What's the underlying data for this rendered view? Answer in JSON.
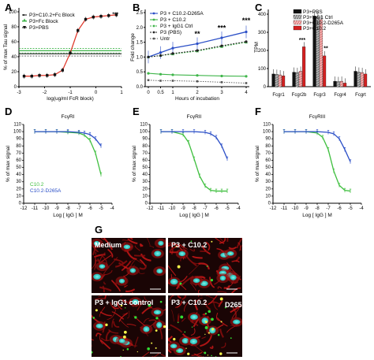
{
  "panel_letters": [
    "A",
    "B",
    "C",
    "D",
    "E",
    "F",
    "G"
  ],
  "chart_data": [
    {
      "id": "A",
      "type": "scatter",
      "xlabel": "log(ug/ml FcR block)",
      "ylabel": "% of max Tau signal",
      "xlim": [
        -3,
        1
      ],
      "ylim": [
        0,
        100
      ],
      "xticks": [
        "-3",
        "-2",
        "-1",
        "0",
        "1"
      ],
      "yticks": [
        "0",
        "20",
        "40",
        "60",
        "80",
        "100"
      ],
      "legend": [
        "P3+C10.2+Fc Block",
        "P3+Fc Block",
        "P3+PBS"
      ],
      "annotation": "***",
      "series": [
        {
          "name": "P3+C10.2+Fc Block",
          "color": "#e03c2f",
          "x": [
            -2.8,
            -2.5,
            -2.2,
            -1.9,
            -1.6,
            -1.3,
            -1.0,
            -0.7,
            -0.4,
            -0.1,
            0.2,
            0.5,
            0.8
          ],
          "y": [
            14,
            14,
            15,
            15,
            16,
            22,
            45,
            75,
            90,
            93,
            94,
            95,
            96
          ]
        },
        {
          "name": "P3+Fc Block",
          "color": "#3fb54a",
          "level": 48
        },
        {
          "name": "P3+PBS",
          "color": "#111111",
          "level": 44
        }
      ]
    },
    {
      "id": "B",
      "type": "line",
      "xlabel": "Hours of incubation",
      "ylabel": "Fold change",
      "xlim": [
        0,
        4
      ],
      "ylim": [
        0,
        2.5
      ],
      "xticks": [
        "0",
        "0.5",
        "1",
        "2",
        "3",
        "4"
      ],
      "yticks": [
        "0.0",
        "0.5",
        "1.0",
        "1.5",
        "2.0",
        "2.5"
      ],
      "annotations": [
        "**",
        "***",
        "***"
      ],
      "series": [
        {
          "name": "P3 + C10.2-D265A",
          "color": "#2b4fc7",
          "x": [
            0,
            0.5,
            1,
            2,
            3,
            4
          ],
          "y": [
            1.0,
            1.15,
            1.3,
            1.45,
            1.65,
            1.85
          ]
        },
        {
          "name": "P3 + C10.2",
          "color": "#3fb54a",
          "x": [
            0,
            0.5,
            1,
            2,
            3,
            4
          ],
          "y": [
            0.45,
            0.42,
            0.4,
            0.38,
            0.36,
            0.35
          ]
        },
        {
          "name": "P3 + IgG1 Ctrl",
          "color": "#3fb54a",
          "x": [
            0,
            0.5,
            1,
            2,
            3,
            4
          ],
          "y": [
            1.0,
            1.05,
            1.1,
            1.2,
            1.35,
            1.5
          ]
        },
        {
          "name": "P3 (PBS)",
          "color": "#222222",
          "x": [
            0,
            0.5,
            1,
            2,
            3,
            4
          ],
          "y": [
            1.0,
            1.05,
            1.12,
            1.22,
            1.38,
            1.52
          ]
        },
        {
          "name": "Untr",
          "color": "#555555",
          "x": [
            0,
            0.5,
            1,
            2,
            3,
            4
          ],
          "y": [
            0.22,
            0.2,
            0.2,
            0.18,
            0.15,
            0.12
          ]
        }
      ]
    },
    {
      "id": "C",
      "type": "bar",
      "ylabel": "TPM",
      "ylim": [
        0,
        400
      ],
      "yticks": [
        "0",
        "100",
        "200",
        "300",
        "400"
      ],
      "categories": [
        "Fcgr1",
        "Fcgr2b",
        "Fcgr3",
        "Fcgr4",
        "Fcgrt"
      ],
      "legend": [
        "P3+PBS",
        "P3+IgG1 Ctrl",
        "P3+C10.2-D265A",
        "P3+C10.2"
      ],
      "annotations": [
        "***",
        "**"
      ],
      "series": [
        {
          "name": "P3+PBS",
          "color": "#111111",
          "values": [
            70,
            80,
            390,
            30,
            85
          ]
        },
        {
          "name": "P3+IgG1 Ctrl",
          "color": "#888888",
          "values": [
            68,
            78,
            385,
            28,
            80
          ]
        },
        {
          "name": "P3+C10.2-D265A",
          "color": "#e88a8a",
          "values": [
            65,
            85,
            370,
            30,
            78
          ]
        },
        {
          "name": "P3+C10.2",
          "color": "#d42020",
          "values": [
            60,
            220,
            170,
            20,
            70
          ]
        }
      ]
    },
    {
      "id": "D",
      "type": "line",
      "title": "FcγRI",
      "xlabel": "Log [ IgG ] M",
      "ylabel": "% of max signal",
      "xlim": [
        -12,
        -4
      ],
      "ylim": [
        0,
        110
      ],
      "xticks": [
        "-12",
        "-11",
        "-10",
        "-9",
        "-8",
        "-7",
        "-6",
        "-5",
        "-4"
      ],
      "yticks": [
        "0",
        "10",
        "20",
        "30",
        "40",
        "50",
        "60",
        "70",
        "80",
        "90",
        "100",
        "110"
      ],
      "legend": [
        "C10.2",
        "C10.2-D265A"
      ],
      "series": [
        {
          "name": "C10.2",
          "color": "#3fbf3f",
          "x": [
            -11,
            -10,
            -9,
            -8,
            -7,
            -6.5,
            -6,
            -5.5,
            -5
          ],
          "y": [
            100,
            100,
            100,
            99,
            98,
            95,
            88,
            70,
            40
          ]
        },
        {
          "name": "C10.2-D265A",
          "color": "#2b4fc7",
          "x": [
            -11,
            -10,
            -9,
            -8,
            -7,
            -6.5,
            -6,
            -5.5,
            -5
          ],
          "y": [
            100,
            100,
            100,
            100,
            99,
            98,
            96,
            90,
            80
          ]
        }
      ]
    },
    {
      "id": "E",
      "type": "line",
      "title": "FcγRII",
      "xlabel": "Log [ IgG ] M",
      "ylabel": "% of max signal",
      "xlim": [
        -12,
        -4
      ],
      "ylim": [
        0,
        110
      ],
      "xticks": [
        "-12",
        "-11",
        "-10",
        "-9",
        "-8",
        "-7",
        "-6",
        "-5",
        "-4"
      ],
      "yticks": [
        "0",
        "10",
        "20",
        "30",
        "40",
        "50",
        "60",
        "70",
        "80",
        "90",
        "100",
        "110"
      ],
      "series": [
        {
          "name": "C10.2",
          "color": "#3fbf3f",
          "x": [
            -11,
            -10,
            -9,
            -8.5,
            -8,
            -7.5,
            -7,
            -6.5,
            -6,
            -5.5,
            -5
          ],
          "y": [
            100,
            100,
            96,
            85,
            62,
            38,
            24,
            18,
            17,
            17,
            17
          ]
        },
        {
          "name": "C10.2-D265A",
          "color": "#2b4fc7",
          "x": [
            -11,
            -10,
            -9,
            -8,
            -7,
            -6.5,
            -6,
            -5.5,
            -5
          ],
          "y": [
            100,
            100,
            100,
            100,
            99,
            97,
            92,
            80,
            62
          ]
        }
      ]
    },
    {
      "id": "F",
      "type": "line",
      "title": "FcγRIII",
      "xlabel": "Log [ IgG ] M",
      "ylabel": "% of max signal",
      "xlim": [
        -12,
        -4
      ],
      "ylim": [
        0,
        110
      ],
      "xticks": [
        "-12",
        "-11",
        "-10",
        "-9",
        "-8",
        "-7",
        "-6",
        "-5",
        "-4"
      ],
      "yticks": [
        "0",
        "10",
        "20",
        "30",
        "40",
        "50",
        "60",
        "70",
        "80",
        "90",
        "100",
        "110"
      ],
      "series": [
        {
          "name": "C10.2",
          "color": "#3fbf3f",
          "x": [
            -11,
            -10,
            -9,
            -8,
            -7.5,
            -7,
            -6.5,
            -6,
            -5.5,
            -5
          ],
          "y": [
            100,
            100,
            100,
            98,
            92,
            75,
            45,
            25,
            18,
            17
          ]
        },
        {
          "name": "C10.2-D265A",
          "color": "#2b4fc7",
          "x": [
            -11,
            -10,
            -9,
            -8,
            -7,
            -6.5,
            -6,
            -5.5,
            -5
          ],
          "y": [
            100,
            100,
            100,
            100,
            99,
            97,
            90,
            75,
            58
          ]
        }
      ]
    }
  ],
  "micrographs": [
    {
      "label": "Medium"
    },
    {
      "label": "P3 + C10.2"
    },
    {
      "label": "P3 + IgG1 control"
    },
    {
      "label": "P3 + C10.2",
      "suffix": "D265A"
    }
  ]
}
